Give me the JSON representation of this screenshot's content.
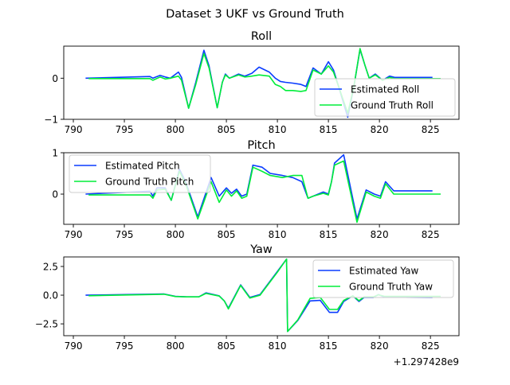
{
  "figure_title": "Dataset 3 UKF vs Ground Truth",
  "x_offset_label": "+1.297428e9",
  "colors": {
    "estimated": "#0a3cff",
    "ground_truth": "#00ee3a"
  },
  "chart_data": [
    {
      "type": "line",
      "title": "Roll",
      "xlim": [
        789.06,
        827.8
      ],
      "ylim": [
        -1.0,
        0.78
      ],
      "xticks": [
        790,
        795,
        800,
        805,
        810,
        815,
        820,
        825
      ],
      "yticks": [
        -1,
        0
      ],
      "ytick_labels": [
        "−1",
        "0"
      ],
      "legend_placement": "lower-right",
      "series": [
        {
          "name": "Estimated Roll",
          "color_key": "estimated",
          "x": [
            791.2,
            797.5,
            797.8,
            798.5,
            799.0,
            799.5,
            800.3,
            800.6,
            801.3,
            802.0,
            802.8,
            803.3,
            804.1,
            804.6,
            804.9,
            805.3,
            806.2,
            806.8,
            807.5,
            808.2,
            809.2,
            809.8,
            810.3,
            810.8,
            811.5,
            812.3,
            812.8,
            813.5,
            814.3,
            815.0,
            815.5,
            816.0,
            816.9,
            817.5,
            818.1,
            818.6,
            819.0,
            819.6,
            820.3,
            821.0,
            821.5,
            825.2
          ],
          "y": [
            0.0,
            0.04,
            0.0,
            0.07,
            0.03,
            0.0,
            0.15,
            0.02,
            -0.73,
            -0.1,
            0.68,
            0.3,
            -0.72,
            -0.1,
            0.1,
            0.0,
            0.1,
            0.05,
            0.12,
            0.27,
            0.15,
            0.0,
            -0.08,
            -0.1,
            -0.12,
            -0.15,
            -0.2,
            0.25,
            0.1,
            0.4,
            0.2,
            -0.2,
            -0.95,
            -0.2,
            0.7,
            0.3,
            0.0,
            0.1,
            -0.05,
            0.05,
            0.02,
            0.02
          ]
        },
        {
          "name": "Ground Truth Roll",
          "color_key": "ground_truth",
          "x": [
            791.5,
            797.5,
            797.8,
            798.5,
            799.0,
            799.5,
            800.3,
            800.6,
            801.3,
            802.0,
            802.8,
            803.3,
            804.1,
            804.6,
            804.9,
            805.3,
            806.2,
            806.8,
            807.5,
            808.2,
            809.2,
            809.8,
            810.3,
            810.8,
            811.5,
            812.3,
            812.8,
            813.5,
            814.3,
            815.0,
            815.5,
            816.0,
            816.9,
            817.5,
            818.1,
            818.6,
            819.0,
            819.6,
            820.3,
            821.0,
            821.5,
            826.0
          ],
          "y": [
            -0.01,
            -0.01,
            -0.05,
            0.03,
            -0.02,
            0.0,
            0.05,
            -0.05,
            -0.73,
            -0.15,
            0.6,
            0.25,
            -0.72,
            -0.1,
            0.08,
            0.0,
            0.08,
            0.03,
            0.05,
            0.08,
            0.05,
            -0.15,
            -0.2,
            -0.3,
            -0.3,
            -0.32,
            -0.3,
            0.2,
            0.1,
            0.3,
            0.15,
            -0.2,
            -0.85,
            -0.2,
            0.72,
            0.3,
            0.0,
            0.08,
            -0.05,
            0.02,
            -0.01,
            -0.01
          ]
        }
      ]
    },
    {
      "type": "line",
      "title": "Pitch",
      "xlim": [
        789.06,
        827.8
      ],
      "ylim": [
        -0.73,
        1.0
      ],
      "xticks": [
        790,
        795,
        800,
        805,
        810,
        815,
        820,
        825
      ],
      "yticks": [
        0,
        1
      ],
      "ytick_labels": [
        "0",
        "1"
      ],
      "legend_placement": "upper-left",
      "series": [
        {
          "name": "Estimated Pitch",
          "color_key": "estimated",
          "x": [
            791.2,
            797.5,
            797.8,
            798.2,
            799.0,
            799.6,
            800.4,
            801.0,
            802.2,
            803.5,
            804.3,
            805.0,
            805.5,
            806.0,
            806.5,
            807.0,
            807.6,
            808.5,
            809.3,
            810.5,
            811.5,
            812.4,
            813.0,
            813.5,
            814.5,
            815.0,
            815.3,
            815.6,
            816.5,
            817.8,
            818.7,
            819.5,
            820.1,
            820.6,
            821.4,
            825.2
          ],
          "y": [
            0.0,
            0.07,
            -0.05,
            0.15,
            0.15,
            -0.15,
            0.6,
            0.3,
            -0.55,
            0.4,
            -0.05,
            0.15,
            0.02,
            0.12,
            -0.05,
            0.0,
            0.7,
            0.65,
            0.5,
            0.45,
            0.4,
            0.3,
            -0.1,
            -0.05,
            0.05,
            0.0,
            0.3,
            0.75,
            0.95,
            -0.6,
            0.1,
            0.0,
            -0.05,
            0.3,
            0.08,
            0.08
          ]
        },
        {
          "name": "Ground Truth Pitch",
          "color_key": "ground_truth",
          "x": [
            791.5,
            797.5,
            797.8,
            798.2,
            799.0,
            799.6,
            800.4,
            801.0,
            802.2,
            803.5,
            804.3,
            805.0,
            805.5,
            806.0,
            806.5,
            807.0,
            807.6,
            808.5,
            809.3,
            810.5,
            811.5,
            812.4,
            813.0,
            813.5,
            814.5,
            815.0,
            815.3,
            815.6,
            816.5,
            817.8,
            818.7,
            819.5,
            820.1,
            820.6,
            821.4,
            826.0
          ],
          "y": [
            -0.02,
            -0.02,
            -0.1,
            0.1,
            0.12,
            -0.15,
            0.55,
            0.25,
            -0.6,
            0.3,
            -0.2,
            0.1,
            -0.05,
            0.08,
            -0.1,
            -0.05,
            0.65,
            0.55,
            0.45,
            0.4,
            0.45,
            0.45,
            -0.1,
            -0.05,
            0.02,
            -0.02,
            0.3,
            0.7,
            0.8,
            -0.68,
            0.05,
            -0.05,
            -0.1,
            0.25,
            0.0,
            0.0
          ]
        }
      ]
    },
    {
      "type": "line",
      "title": "Yaw",
      "xlim": [
        789.06,
        827.8
      ],
      "ylim": [
        -3.53,
        3.33
      ],
      "xticks": [
        790,
        795,
        800,
        805,
        810,
        815,
        820,
        825
      ],
      "xtick_labels": [
        "790",
        "795",
        "800",
        "805",
        "810",
        "815",
        "820",
        "825"
      ],
      "yticks": [
        -2.5,
        0,
        2.5
      ],
      "ytick_labels": [
        "−2.5",
        "0.0",
        "2.5"
      ],
      "legend_placement": "upper-right",
      "series": [
        {
          "name": "Estimated Yaw",
          "color_key": "estimated",
          "x": [
            791.2,
            798.9,
            800.0,
            801.1,
            802.3,
            803.0,
            804.3,
            804.8,
            805.2,
            806.4,
            807.3,
            808.3,
            810.0,
            810.9,
            811.0,
            812.0,
            813.2,
            814.2,
            815.1,
            815.9,
            816.5,
            817.4,
            818.0,
            818.5,
            819.4,
            819.9,
            820.5,
            825.2
          ],
          "y": [
            0.0,
            0.1,
            -0.1,
            -0.15,
            -0.15,
            0.2,
            -0.06,
            -0.5,
            -1.13,
            0.9,
            -0.2,
            0.05,
            2.07,
            3.14,
            -3.16,
            -2.2,
            -0.5,
            -0.45,
            -1.5,
            -1.5,
            -0.55,
            -0.06,
            -0.55,
            -0.2,
            -0.2,
            0.05,
            -0.17,
            -0.2
          ]
        },
        {
          "name": "Ground Truth Yaw",
          "color_key": "ground_truth",
          "x": [
            791.5,
            798.9,
            800.0,
            801.1,
            802.3,
            803.0,
            804.3,
            804.8,
            805.2,
            806.4,
            807.3,
            808.3,
            810.0,
            810.9,
            811.0,
            812.0,
            813.2,
            814.2,
            815.1,
            815.9,
            816.5,
            817.4,
            818.0,
            818.5,
            819.4,
            819.9,
            820.5,
            826.0
          ],
          "y": [
            -0.05,
            0.08,
            -0.12,
            -0.15,
            -0.15,
            0.15,
            -0.08,
            -0.5,
            -1.2,
            0.85,
            -0.25,
            0.0,
            2.0,
            3.14,
            -3.16,
            -2.15,
            -0.28,
            -0.2,
            -1.24,
            -1.24,
            -0.45,
            -0.06,
            -0.48,
            -0.15,
            -0.15,
            0.03,
            -0.1,
            -0.1
          ]
        }
      ]
    }
  ]
}
